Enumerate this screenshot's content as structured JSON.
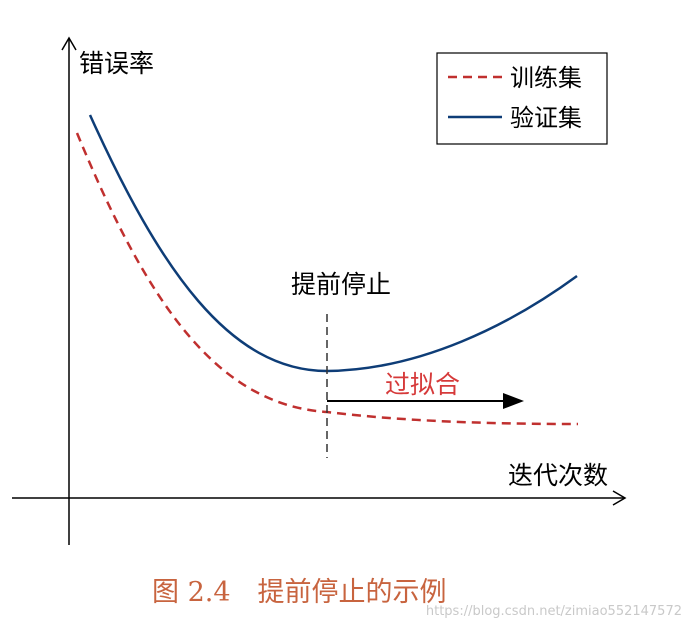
{
  "labels": {
    "y_axis": "错误率",
    "x_axis": "迭代次数",
    "early_stop": "提前停止",
    "overfit": "过拟合"
  },
  "legend": {
    "train": "训练集",
    "val": "验证集"
  },
  "caption": "图 2.4　提前停止的示例",
  "watermark": "https://blog.csdn.net/zimiao552147572",
  "colors": {
    "train": "#c0302f",
    "val": "#0e3d77",
    "overfit_text": "#d63a3a",
    "caption": "#c8643f",
    "axis": "#000000",
    "watermark": "#c9c9c9"
  },
  "icons": {
    "y_axis_arrow": "arrowhead-up-icon",
    "x_axis_arrow": "arrowhead-right-icon",
    "overfit_arrow": "filled-arrowhead-right-icon"
  }
}
